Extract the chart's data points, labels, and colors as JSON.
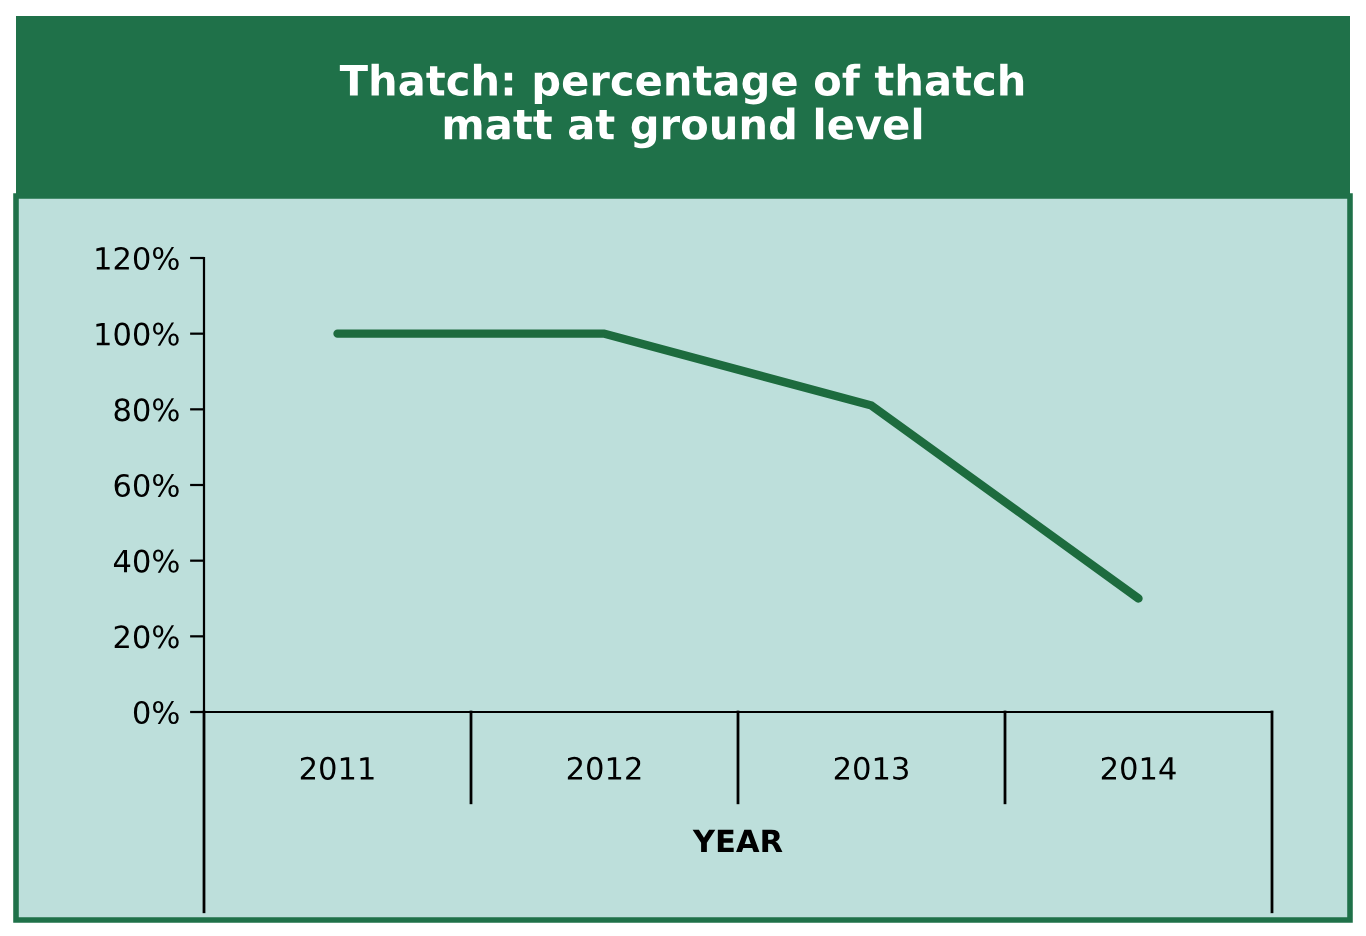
{
  "chart_data": {
    "type": "line",
    "title": "Thatch: percentage of thatch\nmatt at ground level",
    "xlabel": "YEAR",
    "categories": [
      "2011",
      "2012",
      "2013",
      "2014"
    ],
    "series": [
      {
        "color": "#1d6b3e",
        "values": [
          100,
          100,
          81,
          30
        ]
      }
    ],
    "ylim": [
      0,
      120
    ],
    "yticks": [
      {
        "value": 0,
        "label": "0%"
      },
      {
        "value": 20,
        "label": "20%"
      },
      {
        "value": 40,
        "label": "40%"
      },
      {
        "value": 60,
        "label": "60%"
      },
      {
        "value": 80,
        "label": "80%"
      },
      {
        "value": 100,
        "label": "100%"
      },
      {
        "value": 120,
        "label": "120%"
      }
    ],
    "grid": false,
    "legend": false,
    "marker": "none",
    "line_style": "solid"
  }
}
